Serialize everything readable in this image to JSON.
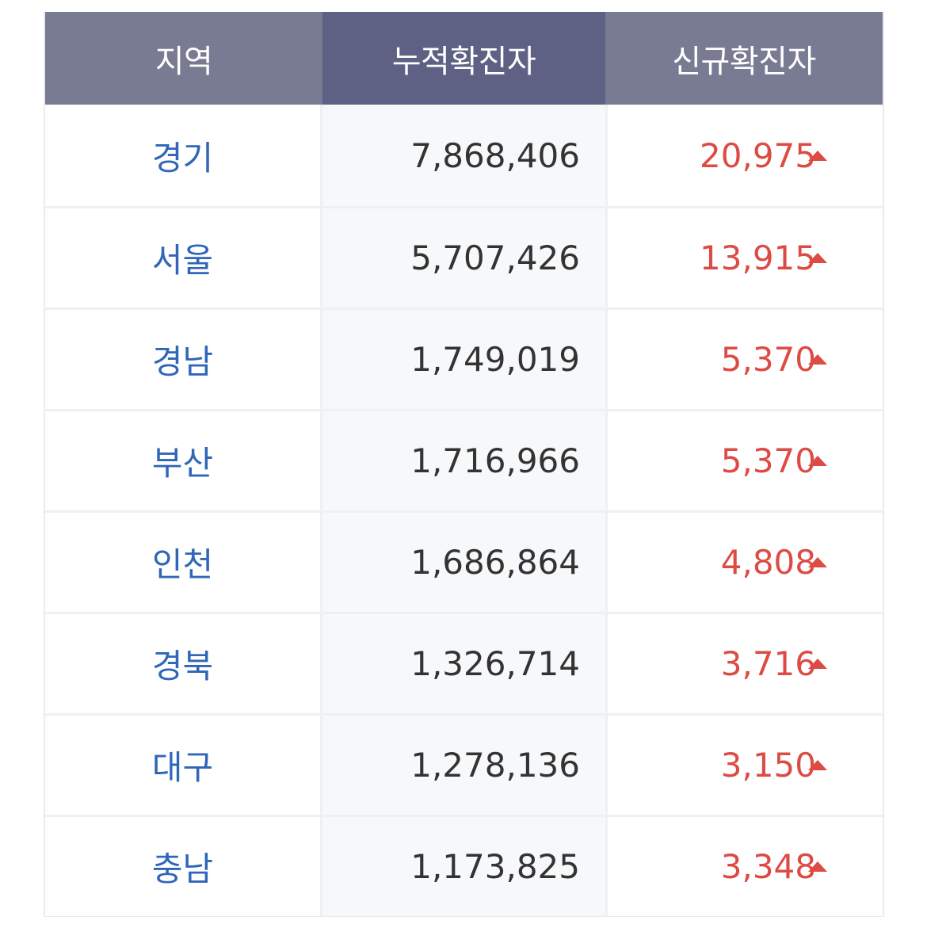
{
  "table": {
    "headers": [
      "지역",
      "누적확진자",
      "신규확진자"
    ],
    "rows": [
      {
        "region": "경기",
        "cumulative": "7,868,406",
        "new": "20,975",
        "trend_icon": "up-triangle-icon"
      },
      {
        "region": "서울",
        "cumulative": "5,707,426",
        "new": "13,915",
        "trend_icon": "up-triangle-icon"
      },
      {
        "region": "경남",
        "cumulative": "1,749,019",
        "new": "5,370",
        "trend_icon": "up-triangle-icon"
      },
      {
        "region": "부산",
        "cumulative": "1,716,966",
        "new": "5,370",
        "trend_icon": "up-triangle-icon"
      },
      {
        "region": "인천",
        "cumulative": "1,686,864",
        "new": "4,808",
        "trend_icon": "up-triangle-icon"
      },
      {
        "region": "경북",
        "cumulative": "1,326,714",
        "new": "3,716",
        "trend_icon": "up-triangle-icon"
      },
      {
        "region": "대구",
        "cumulative": "1,278,136",
        "new": "3,150",
        "trend_icon": "up-triangle-icon"
      },
      {
        "region": "충남",
        "cumulative": "1,173,825",
        "new": "3,348",
        "trend_icon": "up-triangle-icon"
      }
    ]
  },
  "colors": {
    "header_bg": "#787b92",
    "header_bg_active": "#5e6184",
    "region_text": "#2f66b8",
    "new_cases_text": "#dd4b45",
    "cumulative_text": "#333333"
  }
}
